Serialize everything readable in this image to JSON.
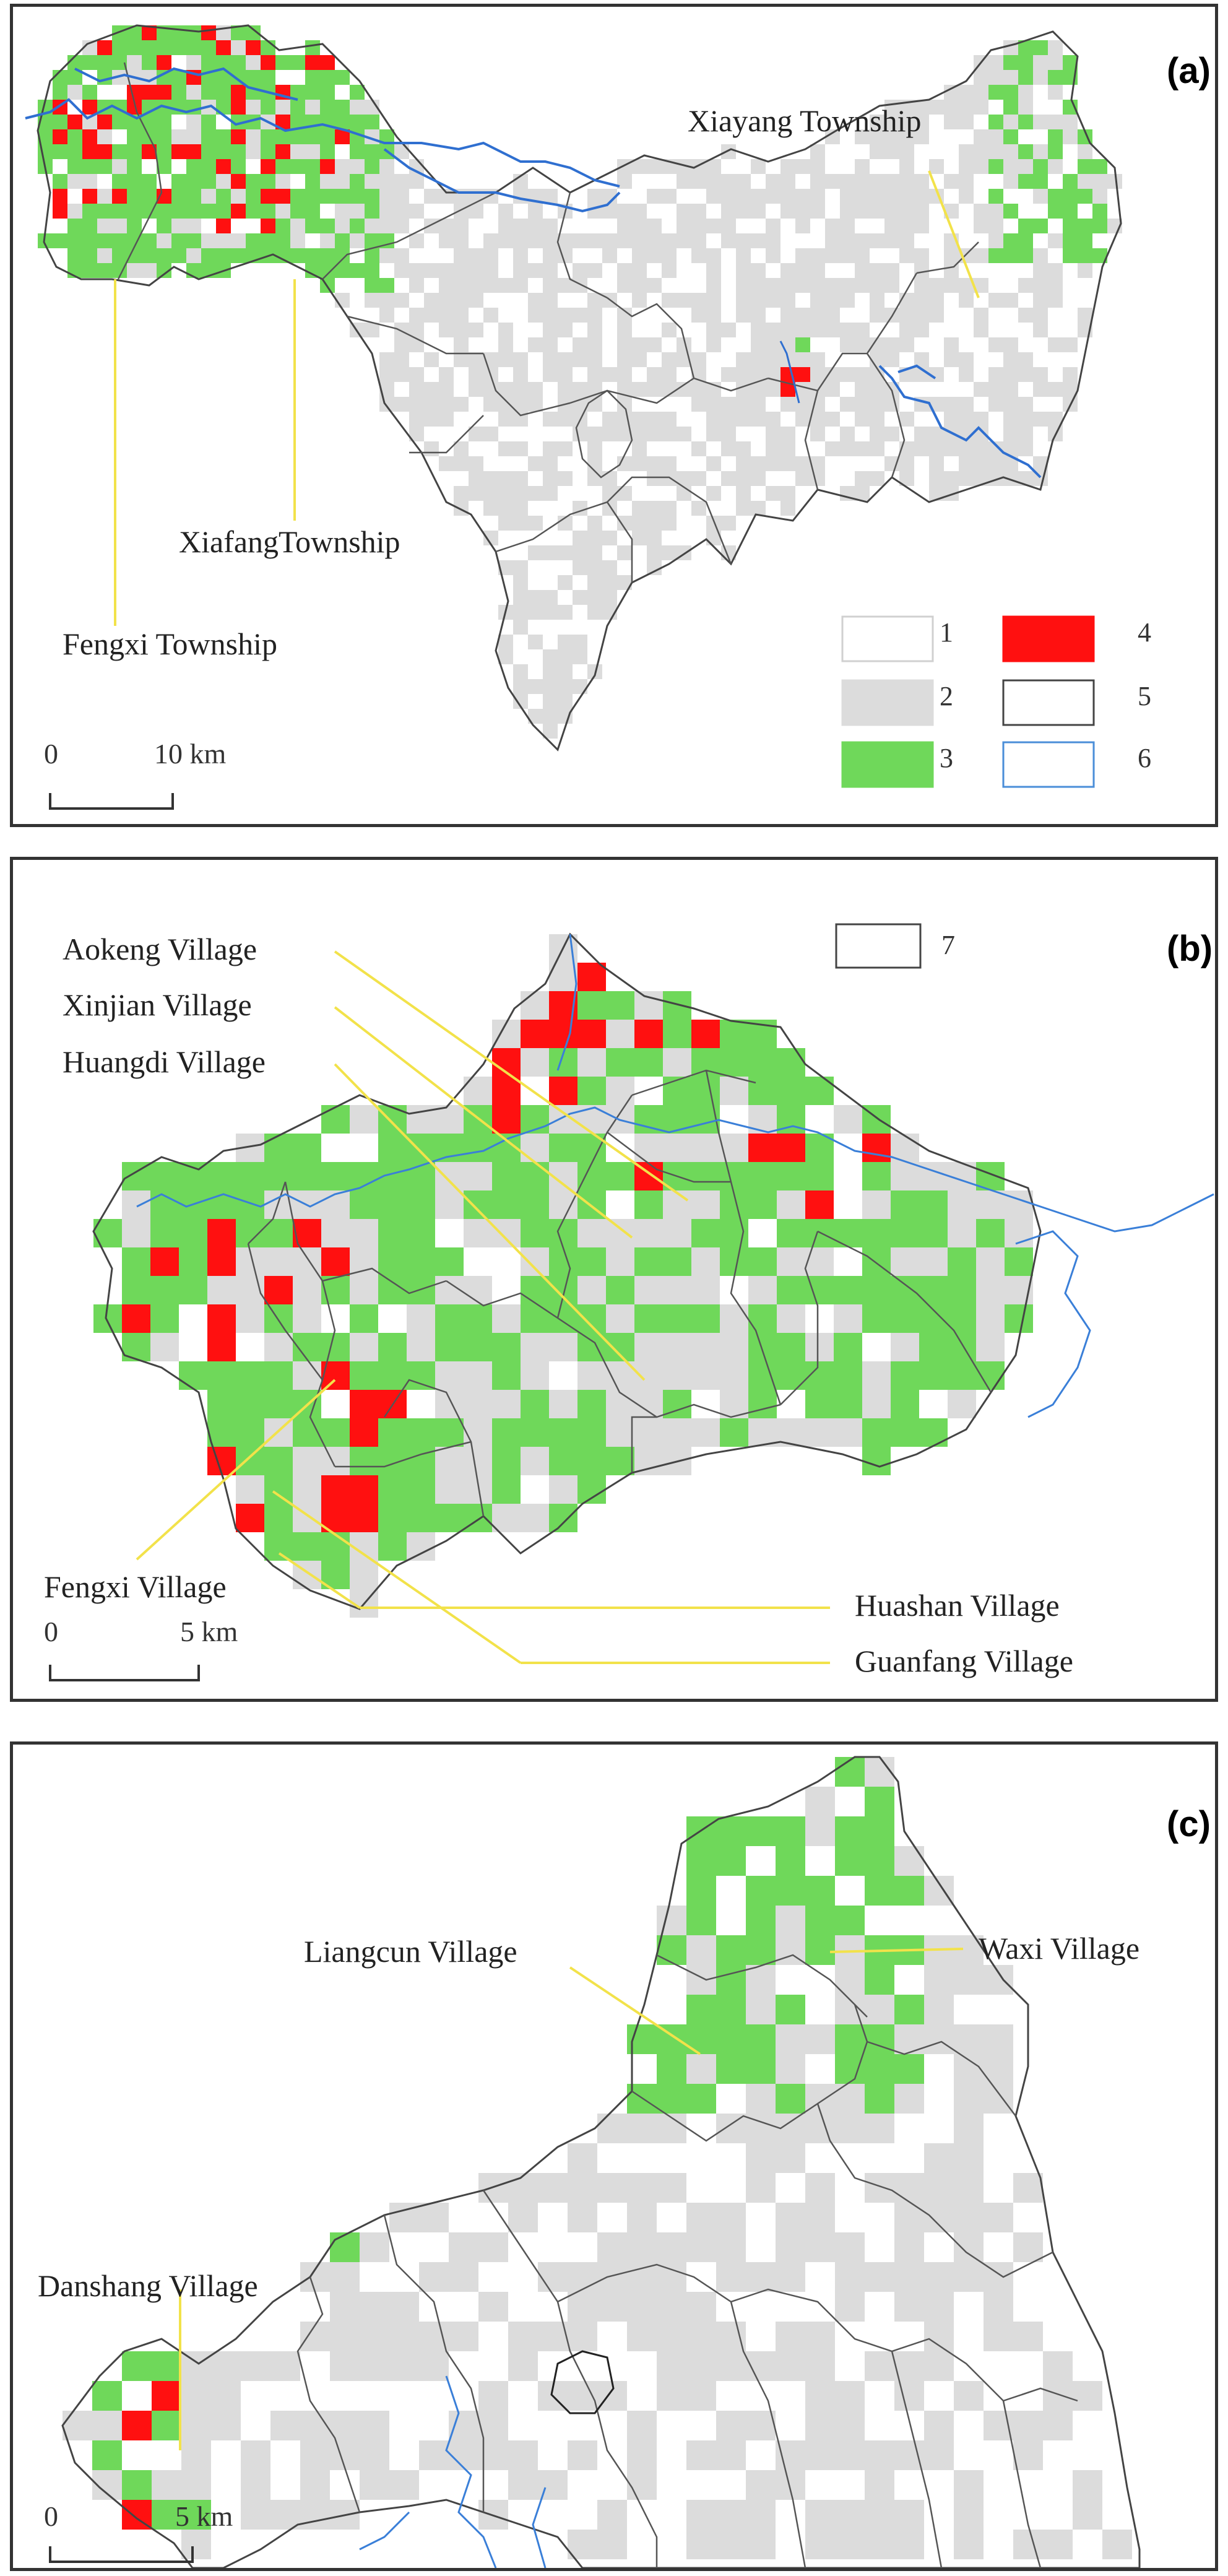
{
  "panels": [
    {
      "id": "a",
      "label": "(a)",
      "labels": {
        "xiayang": "Xiayang Township",
        "xiafang": "XiafangTownship",
        "fengxi": "Fengxi Township"
      },
      "scale": {
        "zero": "0",
        "dist": "10 km"
      },
      "legend": [
        {
          "num": "1",
          "fill": "#ffffff",
          "stroke": "#d0d0d0"
        },
        {
          "num": "2",
          "fill": "#dcdcdc",
          "stroke": "#dcdcdc"
        },
        {
          "num": "3",
          "fill": "#6fd85a",
          "stroke": "#6fd85a"
        },
        {
          "num": "4",
          "fill": "#ff1010",
          "stroke": "#ff1010"
        },
        {
          "num": "5",
          "fill": "#ffffff",
          "stroke": "#444444"
        },
        {
          "num": "6",
          "fill": "#ffffff",
          "stroke": "#4a8ed8"
        }
      ]
    },
    {
      "id": "b",
      "label": "(b)",
      "labels": {
        "aokeng": "Aokeng Village",
        "xinjian": "Xinjian Village",
        "huangdi": "Huangdi Village",
        "fengxi": "Fengxi Village",
        "huashan": "Huashan Village",
        "guanfang": "Guanfang Village"
      },
      "legend_extra": {
        "num": "7",
        "fill": "#ffffff",
        "stroke": "#444444"
      },
      "scale": {
        "zero": "0",
        "dist": "5 km"
      }
    },
    {
      "id": "c",
      "label": "(c)",
      "labels": {
        "liangcun": "Liangcun Village",
        "waxi": "Waxi Village",
        "danshang": "Danshang Village"
      },
      "scale": {
        "zero": "0",
        "dist": "5 km"
      }
    }
  ],
  "colors": {
    "class1": "#ffffff",
    "class2": "#dcdcdc",
    "class3": "#6fd85a",
    "class4": "#ff1010",
    "boundary": "#444444",
    "river": "#3a7fd8",
    "leader": "#f2e24a"
  }
}
